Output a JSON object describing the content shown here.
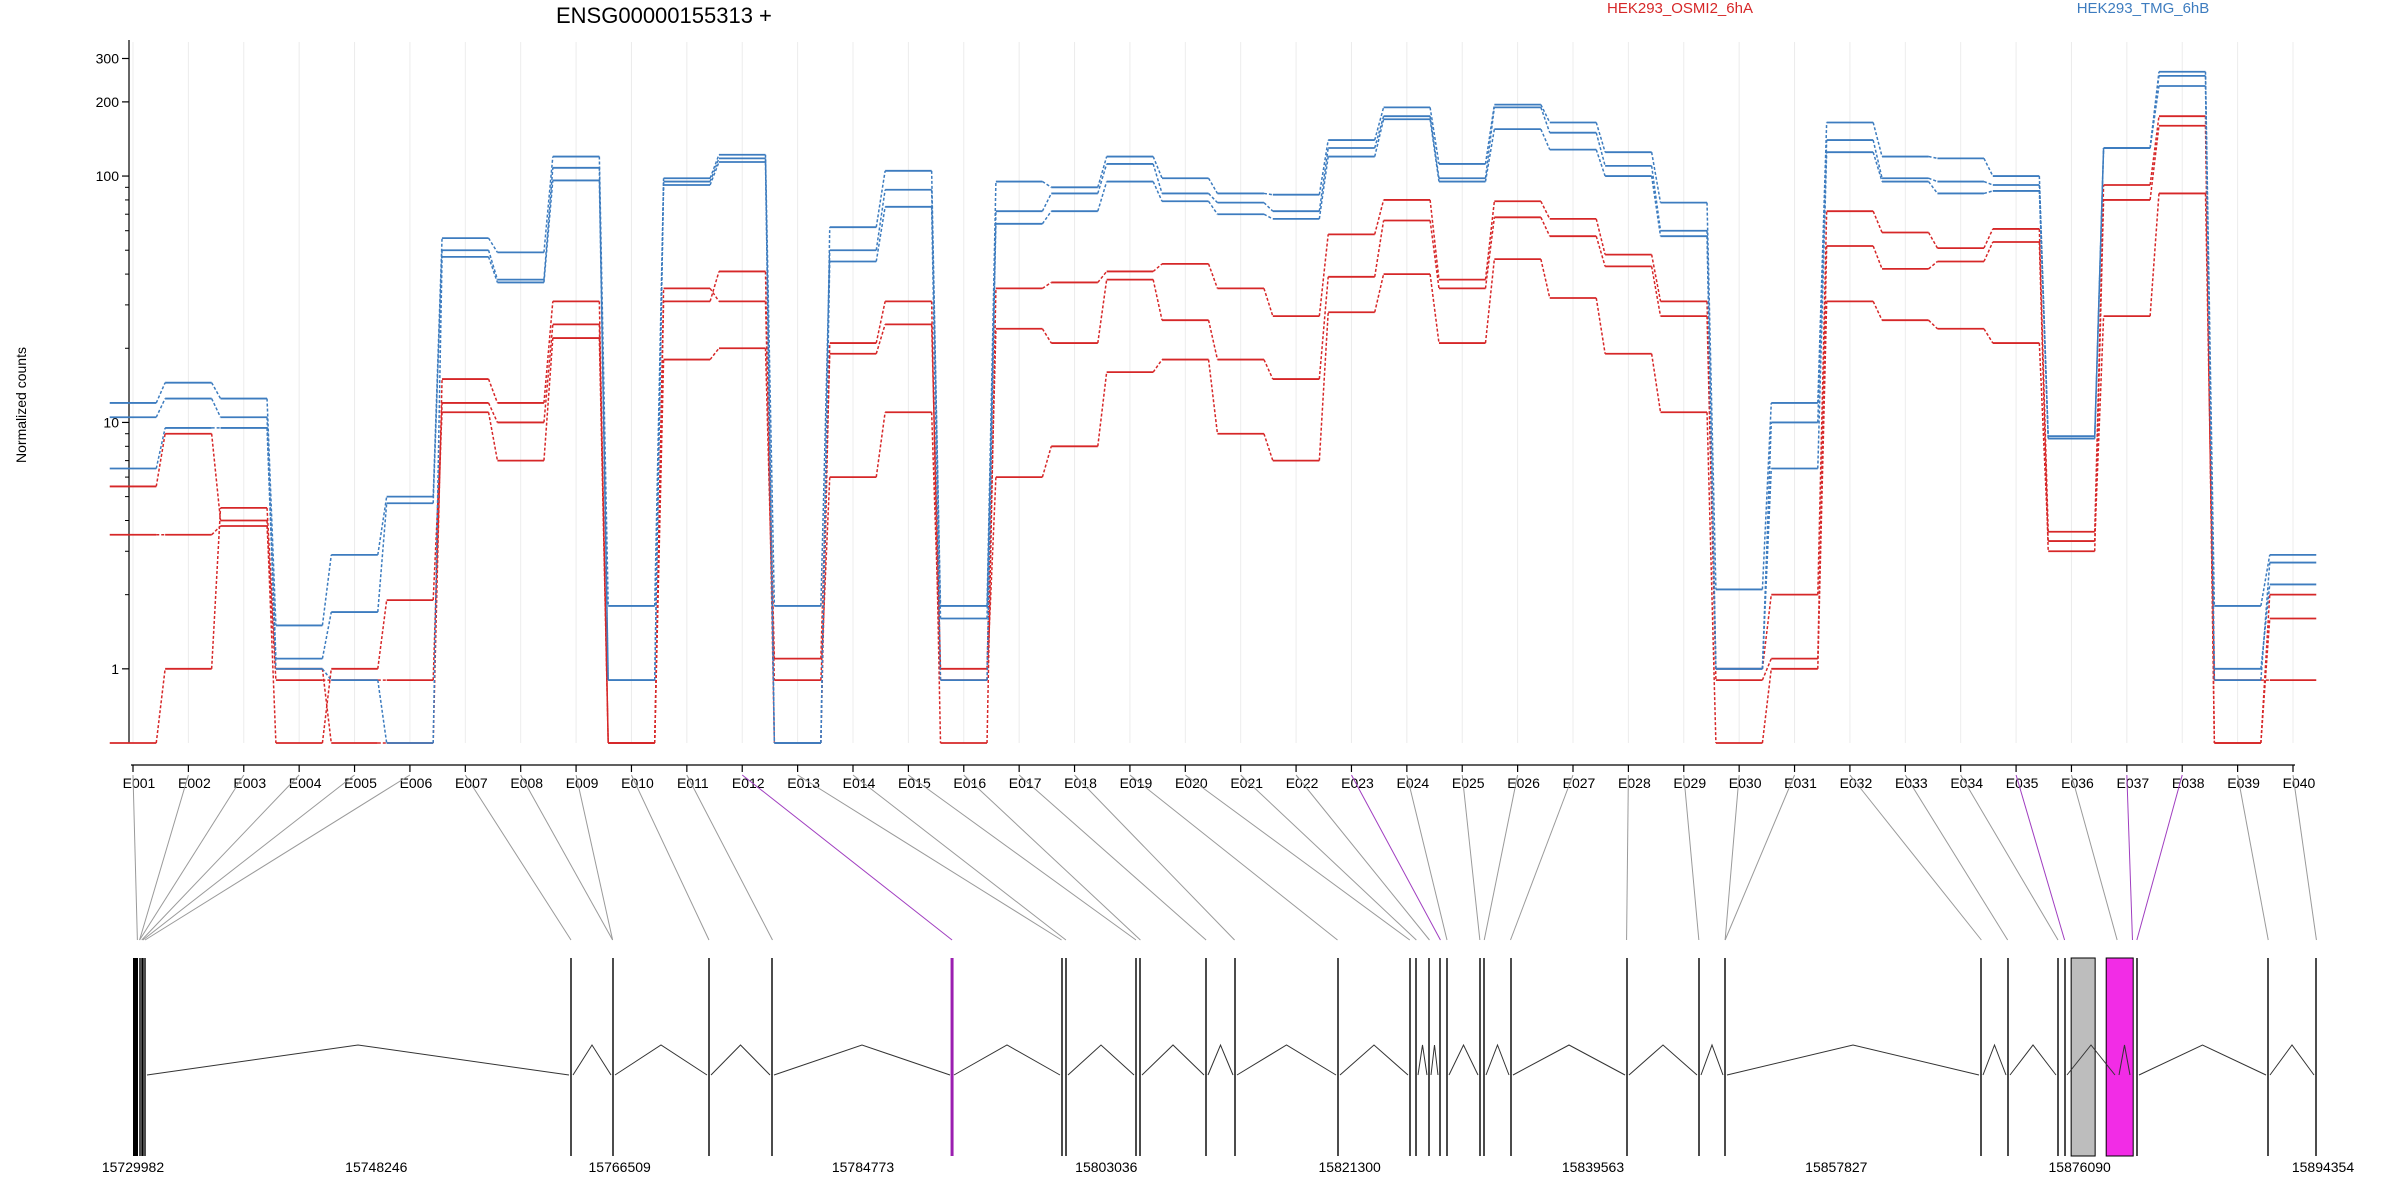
{
  "chart_data": {
    "type": "line",
    "title": "ENSG00000155313 +",
    "ylabel": "Normalized counts",
    "xlabel": "",
    "yscale": "log",
    "ylim": [
      0.5,
      350
    ],
    "yticks": [
      1,
      10,
      100,
      200,
      300
    ],
    "grid": "vertical",
    "legend": "top",
    "categories": [
      "E001",
      "E002",
      "E003",
      "E004",
      "E005",
      "E006",
      "E007",
      "E008",
      "E009",
      "E010",
      "E011",
      "E012",
      "E013",
      "E014",
      "E015",
      "E016",
      "E017",
      "E018",
      "E019",
      "E020",
      "E021",
      "E022",
      "E023",
      "E024",
      "E025",
      "E026",
      "E027",
      "E028",
      "E029",
      "E030",
      "E031",
      "E032",
      "E033",
      "E034",
      "E035",
      "E036",
      "E037",
      "E038",
      "E039",
      "E040"
    ],
    "series": [
      {
        "name": "HEK293_OSMI2_6hA",
        "color": "#d62728",
        "values": [
          3.5,
          3.5,
          3.8,
          0.9,
          0.9,
          0.9,
          12,
          10,
          25,
          0.5,
          18,
          20,
          0.9,
          6,
          11,
          0.9,
          6,
          8,
          16,
          18,
          9,
          7,
          28,
          40,
          21,
          46,
          32,
          19,
          11,
          0.5,
          1,
          31,
          26,
          24,
          21,
          3.3,
          27,
          85,
          0.9,
          0.9
        ]
      },
      {
        "name": "",
        "color": "#d62728",
        "values": [
          5.5,
          9,
          4,
          0.5,
          1,
          1.9,
          11,
          7,
          22,
          0.5,
          35,
          31,
          1.1,
          19,
          25,
          1,
          24,
          21,
          38,
          26,
          18,
          15,
          39,
          66,
          35,
          68,
          57,
          43,
          27,
          0.9,
          1.1,
          52,
          42,
          45,
          54,
          3,
          80,
          160,
          0.5,
          1.6
        ]
      },
      {
        "name": "",
        "color": "#d62728",
        "values": [
          0.5,
          1,
          4.5,
          1,
          0.5,
          0.5,
          15,
          12,
          31,
          0.5,
          31,
          41,
          0.5,
          21,
          31,
          0.5,
          35,
          37,
          41,
          44,
          35,
          27,
          58,
          80,
          38,
          79,
          67,
          48,
          31,
          1,
          2,
          72,
          59,
          51,
          61,
          3.6,
          92,
          175,
          0.5,
          2
        ]
      },
      {
        "name": "HEK293_TMG_6hB",
        "color": "#3d7cbf",
        "values": [
          12,
          14.5,
          12.5,
          1.5,
          2.9,
          5,
          56,
          49,
          120,
          1.8,
          98,
          122,
          1.8,
          50,
          88,
          1.8,
          95,
          90,
          120,
          98,
          85,
          84,
          140,
          190,
          112,
          195,
          165,
          125,
          78,
          2.1,
          12,
          165,
          120,
          118,
          100,
          8.8,
          130,
          265,
          1.8,
          2.9
        ]
      },
      {
        "name": "",
        "color": "#3d7cbf",
        "values": [
          10.5,
          12.5,
          10.5,
          1.1,
          1.7,
          4.7,
          50,
          38,
          108,
          0.9,
          95,
          118,
          0.5,
          45,
          75,
          0.9,
          72,
          85,
          112,
          85,
          78,
          72,
          130,
          175,
          98,
          190,
          150,
          110,
          60,
          1,
          10,
          140,
          98,
          95,
          92,
          8.6,
          130,
          255,
          0.9,
          2.7
        ]
      },
      {
        "name": "",
        "color": "#3d7cbf",
        "values": [
          6.5,
          9.5,
          9.5,
          1,
          0.9,
          0.5,
          47,
          37,
          96,
          0.9,
          92,
          114,
          0.5,
          62,
          105,
          1.6,
          64,
          72,
          95,
          79,
          70,
          67,
          120,
          170,
          95,
          155,
          128,
          100,
          57,
          1,
          6.5,
          125,
          95,
          85,
          87,
          8.6,
          130,
          232,
          1,
          2.2
        ]
      }
    ]
  },
  "gene_model": {
    "coordinate_labels": [
      "15729982",
      "15748246",
      "15766509",
      "15784773",
      "15803036",
      "15821300",
      "15839563",
      "15857827",
      "15876090",
      "15894354"
    ]
  }
}
